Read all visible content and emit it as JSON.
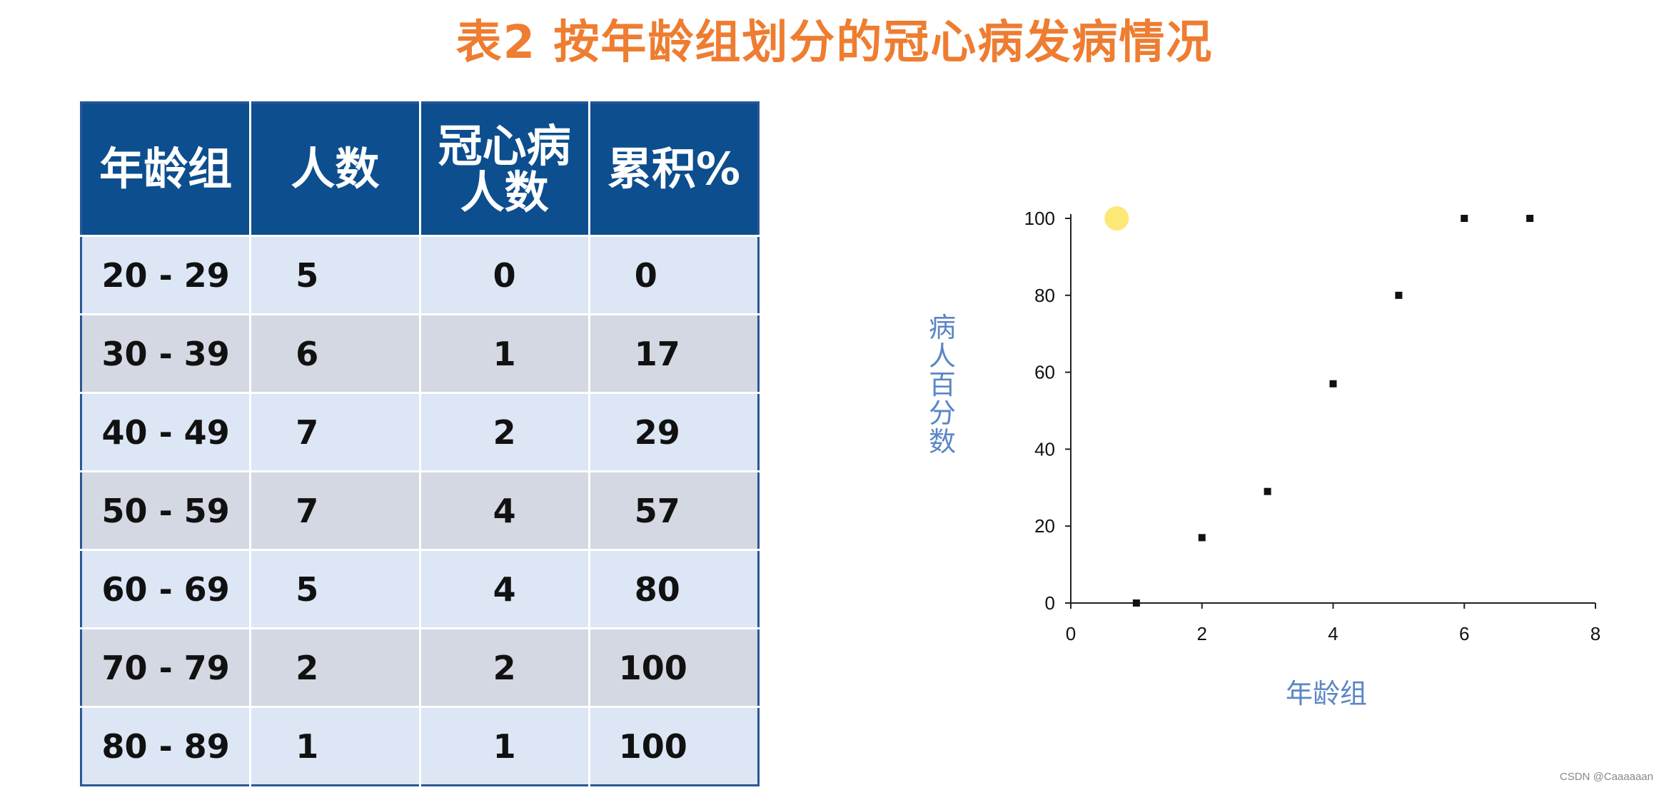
{
  "title": "表2  按年龄组划分的冠心病发病情况",
  "table": {
    "headers": [
      "年龄组",
      "人数",
      "冠心病人数",
      "累积%"
    ],
    "rows": [
      [
        "20 - 29",
        "5",
        "0",
        "0"
      ],
      [
        "30 - 39",
        "6",
        "1",
        "17"
      ],
      [
        "40 - 49",
        "7",
        "2",
        "29"
      ],
      [
        "50 - 59",
        "7",
        "4",
        "57"
      ],
      [
        "60 - 69",
        "5",
        "4",
        "80"
      ],
      [
        "70 - 79",
        "2",
        "2",
        "100"
      ],
      [
        "80 - 89",
        "1",
        "1",
        "100"
      ]
    ]
  },
  "chart_data": {
    "type": "scatter",
    "title": "",
    "xlabel": "年龄组",
    "ylabel": "病人百分数",
    "x": [
      1,
      2,
      3,
      4,
      5,
      6,
      7
    ],
    "y": [
      0,
      17,
      29,
      57,
      80,
      100,
      100
    ],
    "xlim": [
      0,
      8
    ],
    "ylim": [
      0,
      100
    ],
    "xticks": [
      0,
      2,
      4,
      6,
      8
    ],
    "yticks": [
      0,
      20,
      40,
      60,
      80,
      100
    ],
    "grid": false,
    "marker_color": "#111111",
    "highlight": {
      "x": 0.7,
      "y": 100,
      "color": "#fbe877"
    }
  },
  "watermark": "CSDN @Caaaaaan",
  "colors": {
    "title": "#ee7d31",
    "header_bg": "#0d4e8e",
    "row_light": "#dce6f4",
    "row_dark": "#d3d8e2",
    "axis_label": "#5b86c5"
  }
}
